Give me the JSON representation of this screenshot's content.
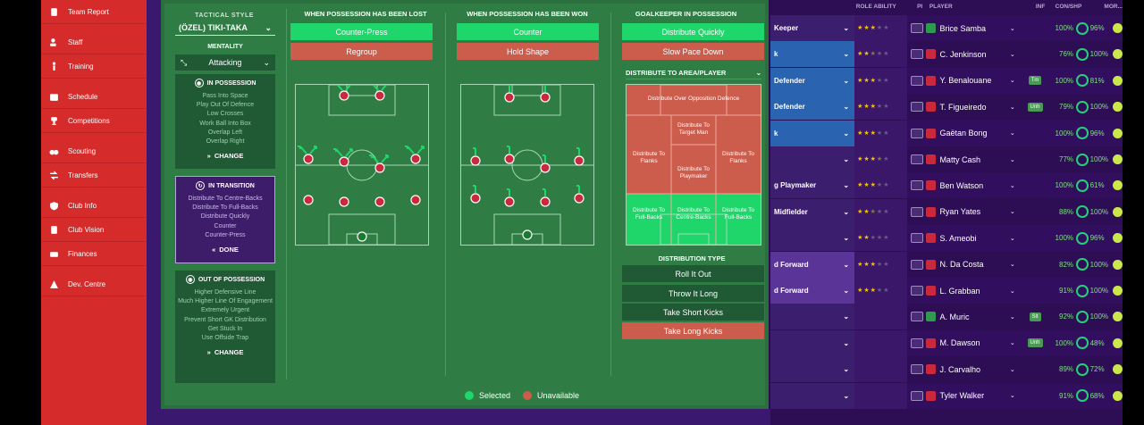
{
  "sidebar": {
    "items": [
      {
        "label": "Team Report",
        "icon": "report-icon"
      },
      {
        "label": "Staff",
        "icon": "staff-icon"
      },
      {
        "label": "Training",
        "icon": "training-icon"
      },
      {
        "label": "Schedule",
        "icon": "calendar-icon"
      },
      {
        "label": "Competitions",
        "icon": "trophy-icon"
      },
      {
        "label": "Scouting",
        "icon": "binoculars-icon"
      },
      {
        "label": "Transfers",
        "icon": "transfer-icon"
      },
      {
        "label": "Club Info",
        "icon": "shield-icon"
      },
      {
        "label": "Club Vision",
        "icon": "vision-icon"
      },
      {
        "label": "Finances",
        "icon": "money-icon"
      },
      {
        "label": "Dev. Centre",
        "icon": "dev-centre-icon"
      }
    ]
  },
  "tactics": {
    "style_label": "TACTICAL STYLE",
    "style_value": "(ÖZEL) TIKI-TAKA",
    "mentality_label": "MENTALITY",
    "mentality_value": "Attacking",
    "in_possession": {
      "title": "IN POSSESSION",
      "items": [
        "Pass Into Space",
        "Play Out Of Defence",
        "Low Crosses",
        "Work Ball Into Box",
        "Overlap Left",
        "Overlap Right"
      ],
      "action": "CHANGE"
    },
    "in_transition": {
      "title": "IN TRANSITION",
      "items": [
        "Distribute To Centre-Backs",
        "Distribute To Full-Backs",
        "Distribute Quickly",
        "Counter",
        "Counter-Press"
      ],
      "action": "DONE"
    },
    "out_of_possession": {
      "title": "OUT OF POSSESSION",
      "items": [
        "Higher Defensive Line",
        "Much Higher Line Of Engagement",
        "Extremely Urgent",
        "Prevent Short GK Distribution",
        "Get Stuck In",
        "Use Offside Trap"
      ],
      "action": "CHANGE"
    },
    "possession_lost": {
      "title": "WHEN POSSESSION HAS BEEN LOST",
      "option1": "Counter-Press",
      "option2": "Regroup"
    },
    "possession_won": {
      "title": "WHEN POSSESSION HAS BEEN WON",
      "option1": "Counter",
      "option2": "Hold Shape"
    },
    "goalkeeper": {
      "title": "GOALKEEPER IN POSSESSION",
      "option1": "Distribute Quickly",
      "option2": "Slow Pace Down",
      "area_title": "DISTRIBUTE TO AREA/PLAYER",
      "zones": {
        "over": "Distribute Over Opposition Defence",
        "target": "Distribute To Target Man",
        "flanks_left": "Distribute To Flanks",
        "flanks_right": "Distribute To Flanks",
        "playmaker": "Distribute To Playmaker",
        "fb_left": "Distribute To Full-Backs",
        "cb": "Distribute To Centre-Backs",
        "fb_right": "Distribute To Full-Backs"
      },
      "type_title": "DISTRIBUTION TYPE",
      "types": [
        "Roll It Out",
        "Throw It Long",
        "Take Short Kicks",
        "Take Long Kicks"
      ]
    },
    "legend": {
      "selected": "Selected",
      "unavailable": "Unavailable",
      "selected_color": "#1fd66b",
      "unavailable_color": "#cc5c4b"
    }
  },
  "squad": {
    "headers": {
      "role_ability": "ROLE ABILITY",
      "pi": "PI",
      "player": "PLAYER",
      "inf": "INF",
      "con_shp": "CON/SHP",
      "morale": "MOR..."
    },
    "rows": [
      {
        "pos": "Keeper",
        "name": "Brice Samba",
        "inf": "",
        "con": "100%",
        "shp": "96%",
        "stars": 3
      },
      {
        "pos": "k",
        "name": "C. Jenkinson",
        "inf": "",
        "con": "76%",
        "shp": "100%",
        "stars": 2.5
      },
      {
        "pos": "Defender",
        "name": "Y. Benalouane",
        "inf": "Tm",
        "con": "100%",
        "shp": "81%",
        "stars": 3
      },
      {
        "pos": "Defender",
        "name": "T. Figueiredo",
        "inf": "Unh",
        "con": "79%",
        "shp": "100%",
        "stars": 3
      },
      {
        "pos": "k",
        "name": "Gaëtan Bong",
        "inf": "",
        "con": "100%",
        "shp": "96%",
        "stars": 3
      },
      {
        "pos": "",
        "name": "Matty Cash",
        "inf": "",
        "con": "77%",
        "shp": "100%",
        "stars": 3.5
      },
      {
        "pos": "g Playmaker",
        "name": "Ben Watson",
        "inf": "",
        "con": "100%",
        "shp": "61%",
        "stars": 3
      },
      {
        "pos": "Midfielder",
        "name": "Ryan Yates",
        "inf": "",
        "con": "88%",
        "shp": "100%",
        "stars": 2.5
      },
      {
        "pos": "",
        "name": "S. Ameobi",
        "inf": "",
        "con": "100%",
        "shp": "96%",
        "stars": 2
      },
      {
        "pos": "d Forward",
        "name": "N. Da Costa",
        "inf": "",
        "con": "82%",
        "shp": "100%",
        "stars": 3
      },
      {
        "pos": "d Forward",
        "name": "L. Grabban",
        "inf": "",
        "con": "91%",
        "shp": "100%",
        "stars": 3
      },
      {
        "pos": "",
        "name": "A. Muric",
        "inf": "Slt",
        "con": "92%",
        "shp": "100%",
        "stars": 0
      },
      {
        "pos": "",
        "name": "M. Dawson",
        "inf": "Unh",
        "con": "100%",
        "shp": "48%",
        "stars": 0
      },
      {
        "pos": "",
        "name": "J. Carvalho",
        "inf": "",
        "con": "89%",
        "shp": "72%",
        "stars": 0
      },
      {
        "pos": "",
        "name": "Tyler Walker",
        "inf": "",
        "con": "91%",
        "shp": "68%",
        "stars": 0
      }
    ]
  }
}
